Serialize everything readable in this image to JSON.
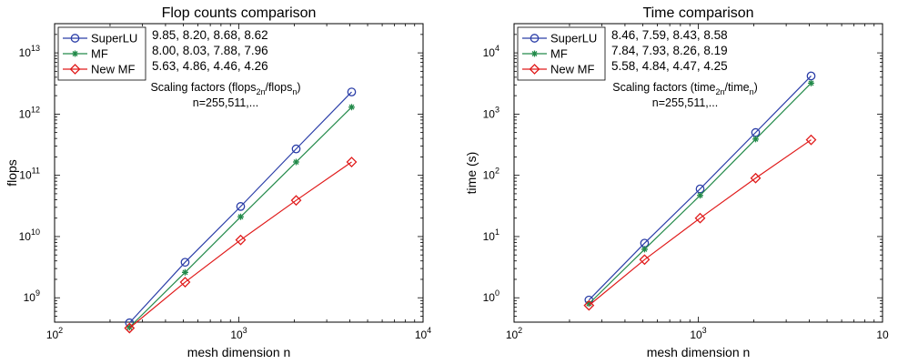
{
  "chart_data": [
    {
      "type": "line",
      "title": "Flop counts comparison",
      "xlabel": "mesh dimension n",
      "ylabel": "flops",
      "x_scale": "log",
      "y_scale": "log",
      "xlim": [
        100,
        10000
      ],
      "ylim": [
        400000000,
        30000000000000
      ],
      "x_ticks": [
        {
          "base": "10",
          "exp": "2"
        },
        {
          "base": "10",
          "exp": "3"
        },
        {
          "base": "10",
          "exp": "4"
        }
      ],
      "y_ticks": [
        {
          "base": "10",
          "exp": "9"
        },
        {
          "base": "10",
          "exp": "10"
        },
        {
          "base": "10",
          "exp": "11"
        },
        {
          "base": "10",
          "exp": "12"
        },
        {
          "base": "10",
          "exp": "13"
        }
      ],
      "x": [
        255,
        511,
        1023,
        2047,
        4095
      ],
      "series": [
        {
          "name": "SuperLU",
          "marker": "circle",
          "color": "#2b3ea8",
          "values": [
            390000000,
            3800000000,
            31000000000,
            270000000000,
            2300000000000
          ]
        },
        {
          "name": "MF",
          "marker": "star",
          "color": "#238a4a",
          "values": [
            330000000,
            2600000000,
            21000000000,
            165000000000,
            1300000000000
          ]
        },
        {
          "name": "New MF",
          "marker": "diamond",
          "color": "#e01b1b",
          "values": [
            320000000,
            1800000000,
            8800000000,
            39000000000,
            165000000000
          ]
        }
      ],
      "legend": "top-left",
      "scaling_values": [
        {
          "text": "9.85, 8.20, 8.68, 8.62",
          "color": "#2b3ea8"
        },
        {
          "text": "8.00, 8.03, 7.88, 7.96",
          "color": "#4aa93f"
        },
        {
          "text": "5.63, 4.86, 4.46, 4.26",
          "color": "#e01b1b"
        }
      ],
      "annotation": {
        "prefix": "Scaling factors (flops",
        "sub1": "2n",
        "middle": "/flops",
        "sub2": "n",
        "suffix": ")",
        "line2": "n=255,511,..."
      }
    },
    {
      "type": "line",
      "title": "Time comparison",
      "xlabel": "mesh dimension n",
      "ylabel": "time (s)",
      "x_scale": "log",
      "y_scale": "log",
      "xlim": [
        100,
        10000
      ],
      "ylim": [
        0.4,
        30000
      ],
      "x_ticks": [
        {
          "base": "10",
          "exp": "2"
        },
        {
          "base": "10",
          "exp": "3"
        },
        {
          "base": "10",
          "exp": ""
        }
      ],
      "y_ticks": [
        {
          "base": "10",
          "exp": "0"
        },
        {
          "base": "10",
          "exp": "1"
        },
        {
          "base": "10",
          "exp": "2"
        },
        {
          "base": "10",
          "exp": "3"
        },
        {
          "base": "10",
          "exp": "4"
        }
      ],
      "x": [
        255,
        511,
        1023,
        2047,
        4095
      ],
      "series": [
        {
          "name": "SuperLU",
          "marker": "circle",
          "color": "#2b3ea8",
          "values": [
            0.92,
            7.8,
            60,
            500,
            4200
          ]
        },
        {
          "name": "MF",
          "marker": "star",
          "color": "#238a4a",
          "values": [
            0.8,
            6.2,
            47,
            390,
            3200
          ]
        },
        {
          "name": "New MF",
          "marker": "diamond",
          "color": "#e01b1b",
          "values": [
            0.75,
            4.2,
            20,
            90,
            380
          ]
        }
      ],
      "legend": "top-left",
      "scaling_values": [
        {
          "text": "8.46, 7.59, 8.43, 8.58",
          "color": "#2b3ea8"
        },
        {
          "text": "7.84, 7.93, 8.26, 8.19",
          "color": "#4aa93f"
        },
        {
          "text": "5.58, 4.84, 4.47, 4.25",
          "color": "#e01b1b"
        }
      ],
      "annotation": {
        "prefix": "Scaling factors (time",
        "sub1": "2n",
        "middle": "/time",
        "sub2": "n",
        "suffix": ")",
        "line2": "n=255,511,..."
      }
    }
  ]
}
